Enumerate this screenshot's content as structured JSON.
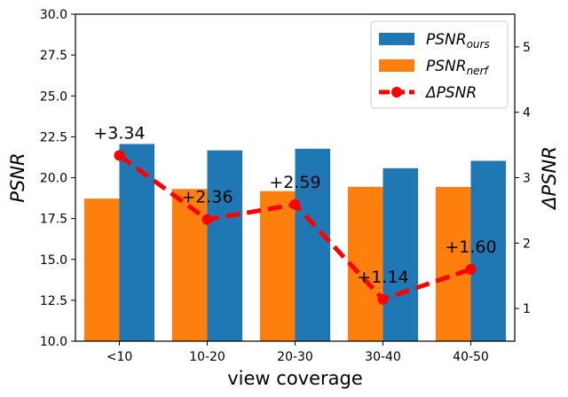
{
  "chart_data": {
    "type": "bar",
    "title": "",
    "xlabel": "view coverage",
    "ylabel": "PSNR",
    "y2label": "ΔPSNR",
    "categories": [
      "<10",
      "10-20",
      "20-30",
      "30-40",
      "40-50"
    ],
    "ylim": [
      10.0,
      30.0
    ],
    "y2lim": [
      0.5,
      5.5
    ],
    "yticks": [
      "10.0",
      "12.5",
      "15.0",
      "17.5",
      "20.0",
      "22.5",
      "25.0",
      "27.5",
      "30.0"
    ],
    "y2ticks": [
      "1",
      "2",
      "3",
      "4",
      "5"
    ],
    "series": [
      {
        "name": "PSNR_ours",
        "legend_main": "PSNR",
        "legend_sub": "ours",
        "axis": "left",
        "kind": "bar",
        "color": "#1f77b4",
        "values": [
          22.06,
          21.67,
          21.77,
          20.58,
          21.03
        ]
      },
      {
        "name": "PSNR_nerf",
        "legend_main": "PSNR",
        "legend_sub": "nerf",
        "axis": "left",
        "kind": "bar",
        "color": "#ff7f0e",
        "values": [
          18.72,
          19.31,
          19.18,
          19.44,
          19.43
        ]
      },
      {
        "name": "ΔPSNR",
        "legend_main": "ΔPSNR",
        "legend_sub": "",
        "axis": "right",
        "kind": "line",
        "color": "#ff0000",
        "style": "dashed",
        "marker": "circle",
        "values": [
          3.34,
          2.36,
          2.59,
          1.14,
          1.6
        ],
        "labels": [
          "+3.34",
          "+2.36",
          "+2.59",
          "+1.14",
          "+1.60"
        ]
      }
    ],
    "legend_position": "top-right",
    "grid": false
  }
}
